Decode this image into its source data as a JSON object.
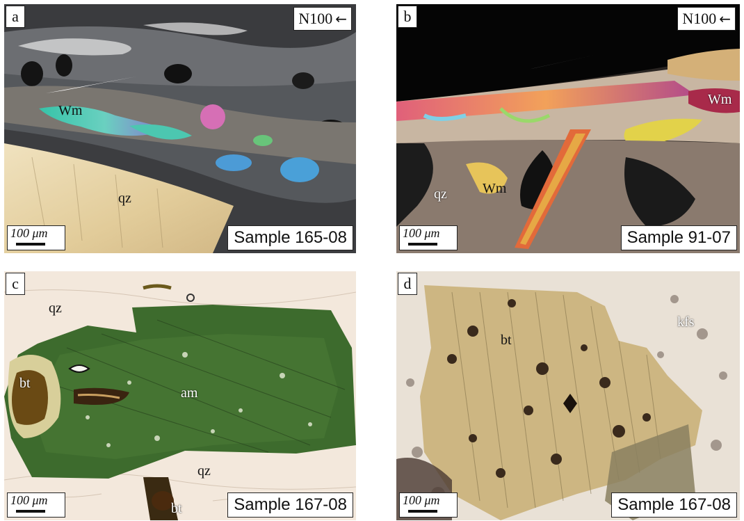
{
  "panels": {
    "a": {
      "letter": "a",
      "orientation": "N100",
      "orientation_arrow": "←",
      "scale": "100 μm",
      "sample": "Sample 165-08",
      "minerals": {
        "wm": "Wm",
        "qz": "qz"
      }
    },
    "b": {
      "letter": "b",
      "orientation": "N100",
      "orientation_arrow": "←",
      "scale": "100 μm",
      "sample": "Sample 91-07",
      "minerals": {
        "wm1": "Wm",
        "qz": "qz",
        "wm2": "Wm"
      }
    },
    "c": {
      "letter": "c",
      "scale": "100 μm",
      "sample": "Sample 167-08",
      "minerals": {
        "qz1": "qz",
        "bt1": "bt",
        "am": "am",
        "qz2": "qz",
        "bt2": "bt"
      }
    },
    "d": {
      "letter": "d",
      "scale": "100 μm",
      "sample": "Sample 167-08",
      "minerals": {
        "bt": "bt",
        "kfs": "kfs"
      }
    }
  },
  "colors": {
    "qz_xpl": "#e5d3a8",
    "wm_interference": "#3fb8a8",
    "amphibole": "#3a6a2c",
    "biotite_ppl": "#c9b27e",
    "matrix_ppl": "#efe6da"
  }
}
